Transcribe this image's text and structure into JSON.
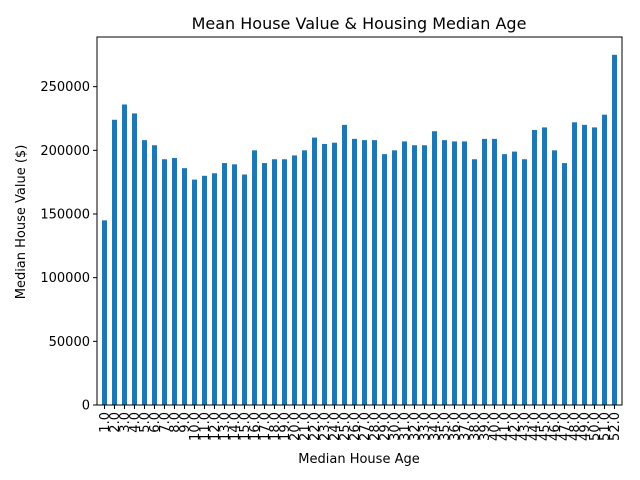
{
  "chart_data": {
    "type": "bar",
    "title": "Mean House Value & Housing Median Age",
    "xlabel": "Median House Age",
    "ylabel": "Median House Value ($)",
    "ylim": [
      0,
      289000
    ],
    "yticks": [
      0,
      50000,
      100000,
      150000,
      200000,
      250000
    ],
    "ytick_labels": [
      "0",
      "50000",
      "100000",
      "150000",
      "200000",
      "250000"
    ],
    "categories": [
      "1.0",
      "2.0",
      "3.0",
      "4.0",
      "5.0",
      "6.0",
      "7.0",
      "8.0",
      "9.0",
      "10.0",
      "11.0",
      "12.0",
      "13.0",
      "14.0",
      "15.0",
      "16.0",
      "17.0",
      "18.0",
      "19.0",
      "20.0",
      "21.0",
      "22.0",
      "23.0",
      "24.0",
      "25.0",
      "26.0",
      "27.0",
      "28.0",
      "29.0",
      "30.0",
      "31.0",
      "32.0",
      "33.0",
      "34.0",
      "35.0",
      "36.0",
      "37.0",
      "38.0",
      "39.0",
      "40.0",
      "41.0",
      "42.0",
      "43.0",
      "44.0",
      "45.0",
      "46.0",
      "47.0",
      "48.0",
      "49.0",
      "50.0",
      "51.0",
      "52.0"
    ],
    "values": [
      145000,
      224000,
      236000,
      229000,
      208000,
      204000,
      193000,
      194000,
      186000,
      177000,
      180000,
      182000,
      190000,
      189000,
      181000,
      200000,
      190000,
      193000,
      193000,
      196000,
      200000,
      210000,
      205000,
      206000,
      220000,
      209000,
      208000,
      208000,
      197000,
      200000,
      207000,
      204000,
      204000,
      215000,
      208000,
      207000,
      207000,
      193000,
      209000,
      209000,
      197000,
      199000,
      193000,
      216000,
      218000,
      200000,
      190000,
      222000,
      220000,
      218000,
      228000,
      275000
    ],
    "colors": {
      "bar": "#1f77b4",
      "axis": "#000000"
    },
    "grid": false,
    "legend": "none"
  }
}
